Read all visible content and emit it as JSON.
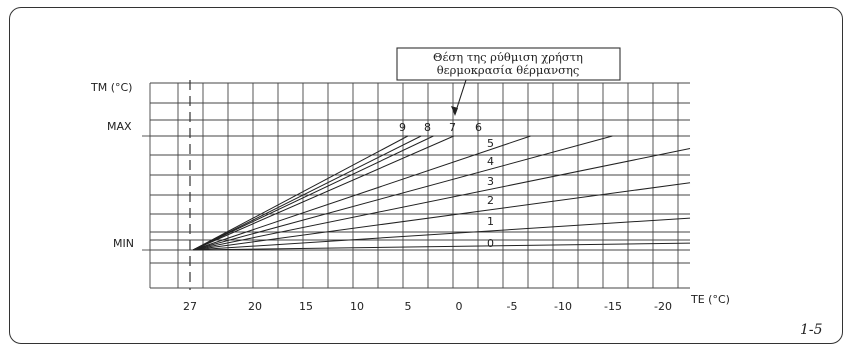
{
  "figure_number": "1-5",
  "callout": {
    "line1": "Θέση της ρύθμιση χρήστη",
    "line2": "θερμοκρασία θέρμανσης"
  },
  "chart_data": {
    "type": "line",
    "title": "",
    "ylabel": "TM (°C)",
    "xlabel": "TE (°C)",
    "x_tick_labels": [
      "27",
      "20",
      "15",
      "10",
      "5",
      "0",
      "-5",
      "-10",
      "-15",
      "-20"
    ],
    "y_tick_labels": [
      "MAX",
      "MIN"
    ],
    "x_reversed": true,
    "grid": true,
    "origin_point": {
      "TE": 26,
      "level": "MIN"
    },
    "series": [
      {
        "name": "0",
        "end_TE": -23,
        "end_level_fraction": 0.06
      },
      {
        "name": "1",
        "end_TE": -23,
        "end_level_fraction": 0.28
      },
      {
        "name": "2",
        "end_TE": -23,
        "end_level_fraction": 0.59
      },
      {
        "name": "3",
        "end_TE": -23,
        "end_level_fraction": 0.89
      },
      {
        "name": "4",
        "end_TE": -15,
        "end_level_fraction": 1.0
      },
      {
        "name": "5",
        "end_TE": -7,
        "end_level_fraction": 1.0
      },
      {
        "name": "6",
        "end_TE": 0.5,
        "end_level_fraction": 1.0
      },
      {
        "name": "7",
        "end_TE": 2.5,
        "end_level_fraction": 1.0
      },
      {
        "name": "8",
        "end_TE": 3.7,
        "end_level_fraction": 1.0
      },
      {
        "name": "9",
        "end_TE": 5,
        "end_level_fraction": 1.0
      }
    ]
  }
}
